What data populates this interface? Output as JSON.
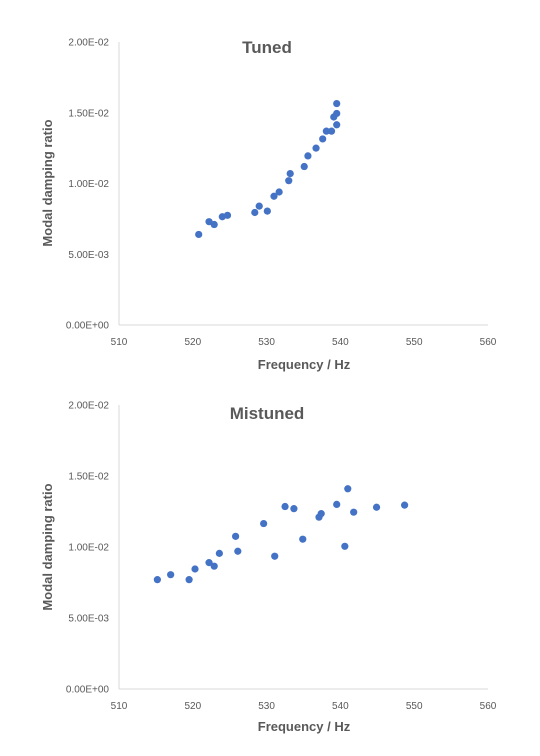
{
  "chart_data": [
    {
      "type": "scatter",
      "title": "Tuned",
      "xlabel": "Frequency / Hz",
      "ylabel": "Modal damping ratio",
      "xlim": [
        510,
        560
      ],
      "ylim": [
        0,
        0.02
      ],
      "xticks": [
        "510",
        "520",
        "530",
        "540",
        "550",
        "560"
      ],
      "yticks": [
        "0.00E+00",
        "5.00E-03",
        "1.00E-02",
        "1.50E-02",
        "2.00E-02"
      ],
      "grid": false,
      "legend": "none",
      "marker_color": "#4472C4",
      "points": [
        {
          "x": 520.8,
          "y": 0.0064
        },
        {
          "x": 522.2,
          "y": 0.0073
        },
        {
          "x": 522.9,
          "y": 0.0071
        },
        {
          "x": 524.0,
          "y": 0.00765
        },
        {
          "x": 524.7,
          "y": 0.00775
        },
        {
          "x": 528.4,
          "y": 0.00795
        },
        {
          "x": 529.0,
          "y": 0.0084
        },
        {
          "x": 530.1,
          "y": 0.00805
        },
        {
          "x": 531.0,
          "y": 0.0091
        },
        {
          "x": 531.7,
          "y": 0.0094
        },
        {
          "x": 533.0,
          "y": 0.0102
        },
        {
          "x": 533.2,
          "y": 0.0107
        },
        {
          "x": 535.1,
          "y": 0.0112
        },
        {
          "x": 535.6,
          "y": 0.01195
        },
        {
          "x": 536.7,
          "y": 0.0125
        },
        {
          "x": 537.6,
          "y": 0.01315
        },
        {
          "x": 538.1,
          "y": 0.0137
        },
        {
          "x": 538.8,
          "y": 0.0137
        },
        {
          "x": 539.1,
          "y": 0.0147
        },
        {
          "x": 539.5,
          "y": 0.01415
        },
        {
          "x": 539.5,
          "y": 0.01495
        },
        {
          "x": 539.5,
          "y": 0.01565
        }
      ]
    },
    {
      "type": "scatter",
      "title": "Mistuned",
      "xlabel": "Frequency / Hz",
      "ylabel": "Modal damping ratio",
      "xlim": [
        510,
        560
      ],
      "ylim": [
        0,
        0.02
      ],
      "xticks": [
        "510",
        "520",
        "530",
        "540",
        "550",
        "560"
      ],
      "yticks": [
        "0.00E+00",
        "5.00E-03",
        "1.00E-02",
        "1.50E-02",
        "2.00E-02"
      ],
      "grid": false,
      "legend": "none",
      "marker_color": "#4472C4",
      "points": [
        {
          "x": 515.2,
          "y": 0.0077
        },
        {
          "x": 517.0,
          "y": 0.00805
        },
        {
          "x": 519.5,
          "y": 0.0077
        },
        {
          "x": 520.3,
          "y": 0.00845
        },
        {
          "x": 522.2,
          "y": 0.0089
        },
        {
          "x": 522.9,
          "y": 0.00865
        },
        {
          "x": 523.6,
          "y": 0.00955
        },
        {
          "x": 525.8,
          "y": 0.01075
        },
        {
          "x": 526.1,
          "y": 0.0097
        },
        {
          "x": 529.6,
          "y": 0.01165
        },
        {
          "x": 531.1,
          "y": 0.00935
        },
        {
          "x": 532.5,
          "y": 0.01285
        },
        {
          "x": 533.7,
          "y": 0.0127
        },
        {
          "x": 534.9,
          "y": 0.01055
        },
        {
          "x": 537.1,
          "y": 0.0121
        },
        {
          "x": 537.4,
          "y": 0.01235
        },
        {
          "x": 539.5,
          "y": 0.013
        },
        {
          "x": 540.6,
          "y": 0.01005
        },
        {
          "x": 541.0,
          "y": 0.0141
        },
        {
          "x": 541.8,
          "y": 0.01245
        },
        {
          "x": 544.9,
          "y": 0.0128
        },
        {
          "x": 548.7,
          "y": 0.01295
        }
      ]
    }
  ]
}
